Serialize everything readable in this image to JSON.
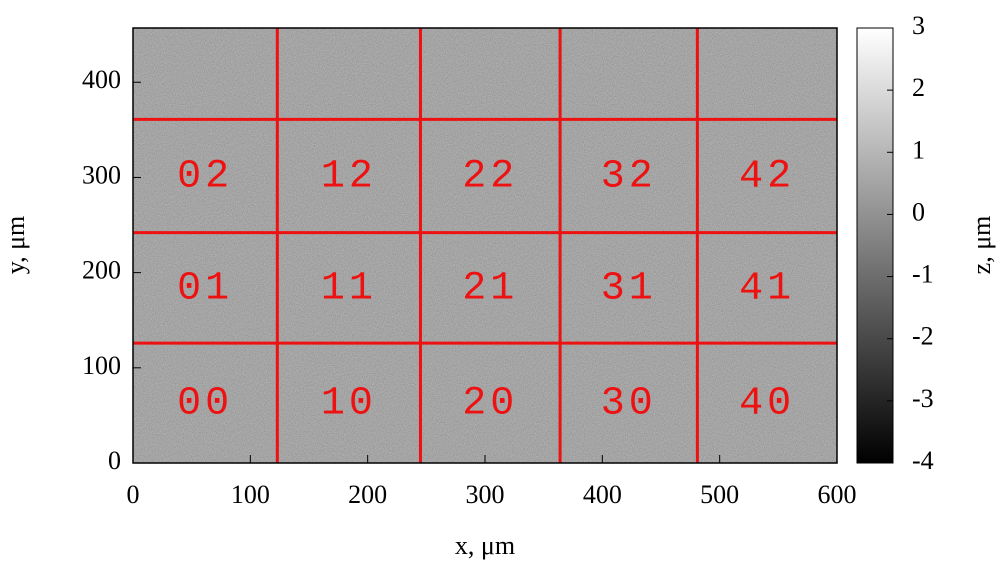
{
  "chart_data": {
    "type": "heatmap",
    "xlabel": "x, μm",
    "ylabel": "y, μm",
    "zlabel": "z, μm",
    "xlim": [
      0,
      600
    ],
    "xticks": [
      0,
      100,
      200,
      300,
      400,
      500,
      600
    ],
    "ylim": [
      0,
      457
    ],
    "yticks": [
      0,
      100,
      200,
      300,
      400
    ],
    "zlim": [
      -4,
      3
    ],
    "zticks": [
      -4,
      -3,
      -2,
      -1,
      0,
      1,
      2,
      3
    ],
    "colormap": "gray",
    "grid_color": "#ee1111",
    "grid_x": [
      123,
      245,
      364,
      481
    ],
    "grid_y": [
      126,
      242,
      361
    ],
    "cell_labels": [
      [
        "00",
        "10",
        "20",
        "30",
        "40"
      ],
      [
        "01",
        "11",
        "21",
        "31",
        "41"
      ],
      [
        "02",
        "12",
        "22",
        "32",
        "42"
      ]
    ]
  }
}
